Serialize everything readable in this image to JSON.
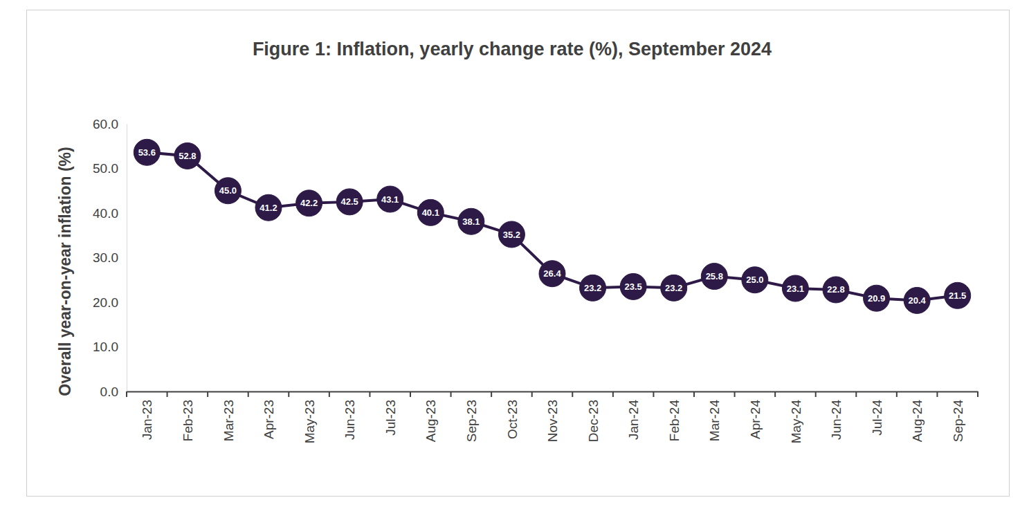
{
  "chart_data": {
    "type": "line",
    "title": "Figure 1: Inflation, yearly change rate (%), September 2024",
    "ylabel": "Overall year-on-year inflation (%)",
    "categories": [
      "Jan-23",
      "Feb-23",
      "Mar-23",
      "Apr-23",
      "May-23",
      "Jun-23",
      "Jul-23",
      "Aug-23",
      "Sep-23",
      "Oct-23",
      "Nov-23",
      "Dec-23",
      "Jan-24",
      "Feb-24",
      "Mar-24",
      "Apr-24",
      "May-24",
      "Jun-24",
      "Jul-24",
      "Aug-24",
      "Sep-24"
    ],
    "values": [
      53.6,
      52.8,
      45.0,
      41.2,
      42.2,
      42.5,
      43.1,
      40.1,
      38.1,
      35.2,
      26.4,
      23.2,
      23.5,
      23.2,
      25.8,
      25.0,
      23.1,
      22.8,
      20.9,
      20.4,
      21.5
    ],
    "value_labels": [
      "53.6",
      "52.8",
      "45.0",
      "41.2",
      "42.2",
      "42.5",
      "43.1",
      "40.1",
      "38.1",
      "35.2",
      "26.4",
      "23.2",
      "23.5",
      "23.2",
      "25.8",
      "25.0",
      "23.1",
      "22.8",
      "20.9",
      "20.4",
      "21.5"
    ],
    "color": "#2e1a47",
    "marker": "circle",
    "line_style": "solid",
    "data_labels": true,
    "grid": false,
    "ylim": [
      0,
      60
    ],
    "yticks": [
      {
        "value": 0,
        "label": "0.0"
      },
      {
        "value": 10,
        "label": "10.0"
      },
      {
        "value": 20,
        "label": "20.0"
      },
      {
        "value": 30,
        "label": "30.0"
      },
      {
        "value": 40,
        "label": "40.0"
      },
      {
        "value": 50,
        "label": "50.0"
      },
      {
        "value": 60,
        "label": "60.0"
      }
    ]
  }
}
